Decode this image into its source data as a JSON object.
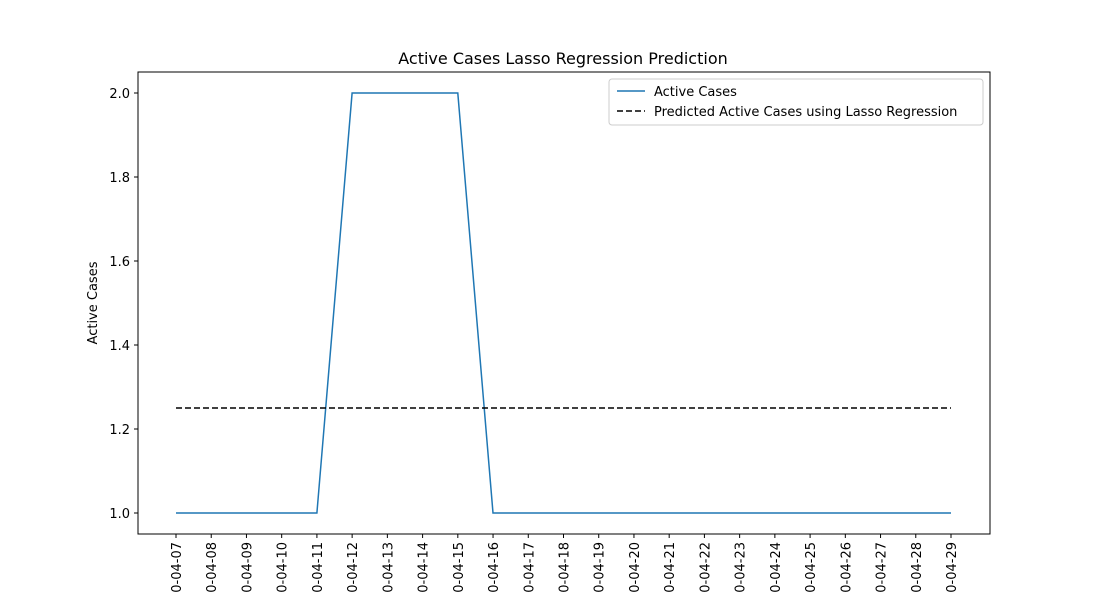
{
  "chart_data": {
    "type": "line",
    "title": "Active Cases Lasso Regression Prediction",
    "xlabel": "",
    "ylabel": "Active Cases",
    "categories": [
      "0-04-07",
      "0-04-08",
      "0-04-09",
      "0-04-10",
      "0-04-11",
      "0-04-12",
      "0-04-13",
      "0-04-14",
      "0-04-15",
      "0-04-16",
      "0-04-17",
      "0-04-18",
      "0-04-19",
      "0-04-20",
      "0-04-21",
      "0-04-22",
      "0-04-23",
      "0-04-24",
      "0-04-25",
      "0-04-26",
      "0-04-27",
      "0-04-28",
      "0-04-29"
    ],
    "ylim": [
      0.95,
      2.05
    ],
    "yticks": [
      1.0,
      1.2,
      1.4,
      1.6,
      1.8,
      2.0
    ],
    "ytick_labels": [
      "1.0",
      "1.2",
      "1.4",
      "1.6",
      "1.8",
      "2.0"
    ],
    "grid": false,
    "legend_position": "upper-right",
    "series": [
      {
        "name": "Active Cases",
        "color": "#1f77b4",
        "style": "solid",
        "values": [
          1,
          1,
          1,
          1,
          1,
          2,
          2,
          2,
          2,
          1,
          1,
          1,
          1,
          1,
          1,
          1,
          1,
          1,
          1,
          1,
          1,
          1,
          1
        ]
      },
      {
        "name": "Predicted Active Cases using Lasso Regression",
        "color": "#000000",
        "style": "dashed",
        "values": [
          1.25,
          1.25,
          1.25,
          1.25,
          1.25,
          1.25,
          1.25,
          1.25,
          1.25,
          1.25,
          1.25,
          1.25,
          1.25,
          1.25,
          1.25,
          1.25,
          1.25,
          1.25,
          1.25,
          1.25,
          1.25,
          1.25,
          1.25
        ]
      }
    ]
  }
}
